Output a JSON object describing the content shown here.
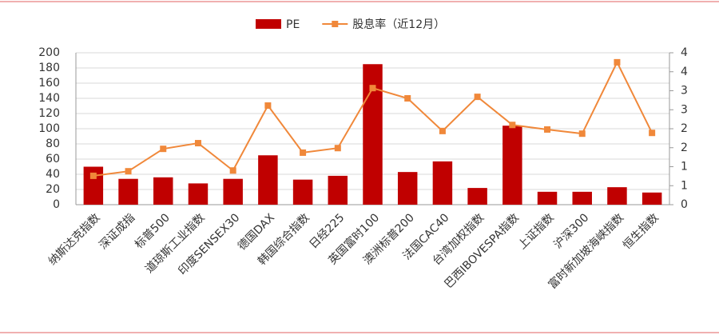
{
  "chart_data": {
    "type": "bar_line",
    "categories": [
      "纳斯达克指数",
      "深证成指",
      "标普500",
      "道琼斯工业指数",
      "印度SENSEX30",
      "德国DAX",
      "韩国综合指数",
      "日经225",
      "英国富时100",
      "澳洲标普200",
      "法国CAC40",
      "台湾加权指数",
      "巴西IBOVESPA指数",
      "上证指数",
      "沪深300",
      "富时新加坡海峡指数",
      "恒生指数"
    ],
    "series": [
      {
        "name": "PE",
        "type": "bar",
        "color": "#c00000",
        "values": [
          50,
          34,
          36,
          28,
          34,
          65,
          33,
          38,
          185,
          43,
          57,
          22,
          104,
          17,
          17,
          23,
          16
        ]
      },
      {
        "name": "股息率（近12月）",
        "type": "line",
        "axis": "y2",
        "color": "#f0883a",
        "values": [
          0.76,
          0.88,
          1.47,
          1.62,
          0.9,
          2.61,
          1.37,
          1.49,
          3.07,
          2.8,
          1.94,
          2.84,
          2.1,
          1.98,
          1.87,
          3.75,
          1.89
        ]
      }
    ],
    "ylim": [
      0,
      200
    ],
    "yticks": [
      0,
      20,
      40,
      60,
      80,
      100,
      120,
      140,
      160,
      180,
      200
    ],
    "y2lim": [
      0,
      4
    ],
    "y2ticks": [
      0,
      {
        "value": 0.5,
        "label": "1"
      },
      1,
      {
        "value": 1.5,
        "label": "2"
      },
      2,
      {
        "value": 2.5,
        "label": "3"
      },
      3,
      {
        "value": 3.5,
        "label": "4"
      },
      4
    ],
    "grid": true,
    "legend": "top"
  }
}
